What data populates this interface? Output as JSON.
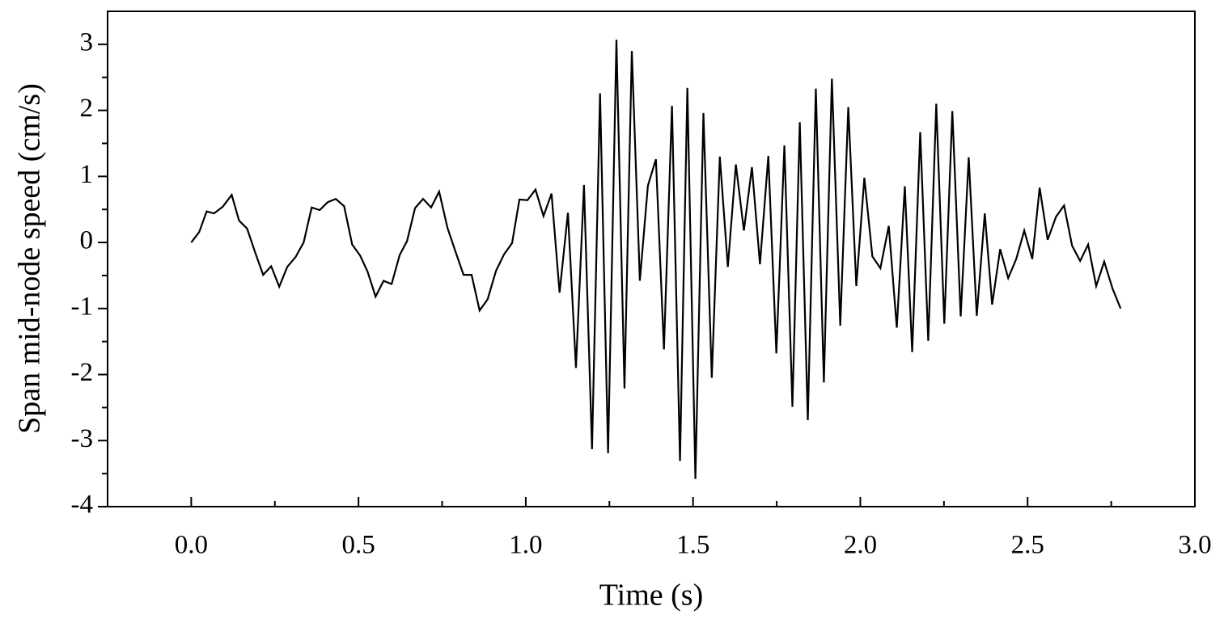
{
  "chart_data": {
    "type": "line",
    "xlabel": "Time (s)",
    "ylabel": "Span mid-node speed (cm/s)",
    "xlim": [
      -0.25,
      3.0
    ],
    "ylim": [
      -4,
      3.5
    ],
    "xticks": [
      {
        "value": 0,
        "label": "0.0"
      },
      0.5,
      {
        "value": 1,
        "label": "1.0"
      },
      1.5,
      {
        "value": 2,
        "label": "2.0"
      },
      2.5,
      {
        "value": 3,
        "label": "3.0"
      }
    ],
    "yticks": [
      -4,
      -3,
      -2,
      -1,
      0,
      1,
      2,
      3
    ],
    "series": [
      {
        "color": "#000000",
        "x": [
          0,
          0.024,
          0.046,
          0.068,
          0.094,
          0.121,
          0.143,
          0.167,
          0.191,
          0.215,
          0.239,
          0.263,
          0.287,
          0.312,
          0.336,
          0.36,
          0.384,
          0.408,
          0.432,
          0.457,
          0.481,
          0.505,
          0.527,
          0.551,
          0.575,
          0.599,
          0.623,
          0.645,
          0.669,
          0.693,
          0.717,
          0.741,
          0.766,
          0.79,
          0.814,
          0.838,
          0.862,
          0.886,
          0.911,
          0.935,
          0.959,
          0.981,
          1.005,
          1.029,
          1.053,
          1.077,
          1.101,
          1.126,
          1.15,
          1.174,
          1.198,
          1.222,
          1.246,
          1.271,
          1.295,
          1.317,
          1.341,
          1.365,
          1.389,
          1.413,
          1.437,
          1.461,
          1.483,
          1.507,
          1.531,
          1.556,
          1.58,
          1.604,
          1.628,
          1.652,
          1.676,
          1.7,
          1.725,
          1.749,
          1.773,
          1.797,
          1.819,
          1.843,
          1.867,
          1.891,
          1.915,
          1.94,
          1.964,
          1.988,
          2.012,
          2.036,
          2.06,
          2.085,
          2.109,
          2.133,
          2.155,
          2.179,
          2.203,
          2.227,
          2.251,
          2.275,
          2.3,
          2.324,
          2.348,
          2.372,
          2.394,
          2.418,
          2.442,
          2.466,
          2.49,
          2.514,
          2.536,
          2.56,
          2.585,
          2.609,
          2.633,
          2.657,
          2.681,
          2.705,
          2.729,
          2.754,
          2.778
        ],
        "values": [
          0,
          0.16,
          0.47,
          0.44,
          0.54,
          0.72,
          0.33,
          0.21,
          -0.15,
          -0.49,
          -0.36,
          -0.67,
          -0.37,
          -0.22,
          0,
          0.53,
          0.49,
          0.61,
          0.66,
          0.55,
          -0.03,
          -0.2,
          -0.44,
          -0.82,
          -0.58,
          -0.63,
          -0.19,
          0.02,
          0.52,
          0.66,
          0.53,
          0.77,
          0.22,
          -0.14,
          -0.49,
          -0.49,
          -1.03,
          -0.86,
          -0.43,
          -0.18,
          -0.01,
          0.65,
          0.64,
          0.8,
          0.4,
          0.74,
          -0.76,
          0.45,
          -1.9,
          0.87,
          -3.13,
          2.26,
          -3.19,
          3.07,
          -2.21,
          2.9,
          -0.58,
          0.86,
          1.26,
          -1.62,
          2.07,
          -3.31,
          2.34,
          -3.58,
          1.96,
          -2.05,
          1.3,
          -0.37,
          1.18,
          0.18,
          1.14,
          -0.33,
          1.31,
          -1.68,
          1.47,
          -2.49,
          1.82,
          -2.69,
          2.33,
          -2.12,
          2.48,
          -1.26,
          2.05,
          -0.66,
          0.98,
          -0.21,
          -0.39,
          0.25,
          -1.29,
          0.85,
          -1.66,
          1.67,
          -1.49,
          2.1,
          -1.23,
          1.99,
          -1.12,
          1.29,
          -1.11,
          0.44,
          -0.94,
          -0.1,
          -0.54,
          -0.25,
          0.18,
          -0.25,
          0.83,
          0.04,
          0.39,
          0.56,
          -0.05,
          -0.28,
          -0.03,
          -0.66,
          -0.29,
          -0.7,
          -1.0
        ]
      }
    ]
  }
}
